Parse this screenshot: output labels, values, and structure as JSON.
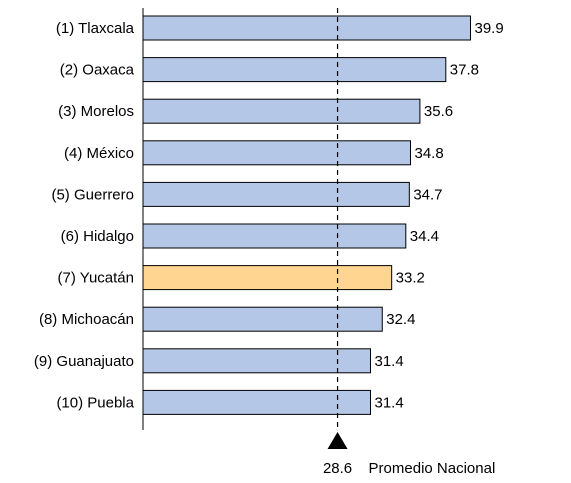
{
  "chart_data": {
    "type": "bar",
    "orientation": "horizontal",
    "title": "",
    "xlabel": "",
    "ylabel": "",
    "categories": [
      "(1) Tlaxcala",
      "(2) Oaxaca",
      "(3) Morelos",
      "(4) México",
      "(5) Guerrero",
      "(6) Hidalgo",
      "(7) Yucatán",
      "(8) Michoacán",
      "(9) Guanajuato",
      "(10) Puebla"
    ],
    "values": [
      39.9,
      37.8,
      35.6,
      34.8,
      34.7,
      34.4,
      33.2,
      32.4,
      31.4,
      31.4
    ],
    "value_labels": [
      "39.9",
      "37.8",
      "35.6",
      "34.8",
      "34.7",
      "34.4",
      "33.2",
      "32.4",
      "31.4",
      "31.4"
    ],
    "highlight_index": 6,
    "colors": {
      "bar": "#b4c7e7",
      "bar_highlight": "#ffd591",
      "bar_border": "#000000",
      "reference_line": "#000000",
      "text": "#000000"
    },
    "reference": {
      "value": 28.6,
      "value_label": "28.6",
      "label": "Promedio Nacional",
      "line_style": "dashed",
      "marker": "triangle-up"
    },
    "grid": false,
    "legend": "none"
  }
}
